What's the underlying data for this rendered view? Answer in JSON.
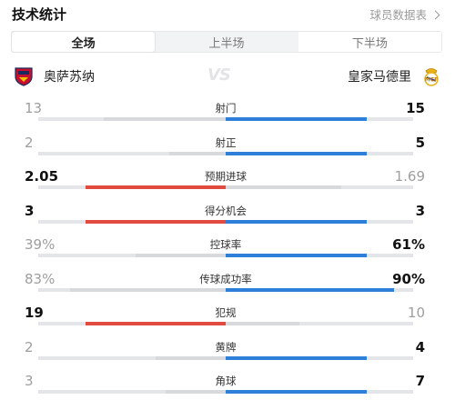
{
  "header": {
    "title": "技术统计",
    "data_link": "球员数据表"
  },
  "tabs": [
    {
      "label": "全场",
      "active": true
    },
    {
      "label": "上半场",
      "active": false
    },
    {
      "label": "下半场",
      "active": false
    }
  ],
  "teams": {
    "home": {
      "name": "奥萨苏纳",
      "icon": "osasuna-badge-icon"
    },
    "away": {
      "name": "皇家马德里",
      "icon": "real-madrid-badge-icon"
    },
    "vs": "VS"
  },
  "colors": {
    "home": "#e04a3f",
    "away": "#2e7fd9",
    "neutral": "#d8d9dc"
  },
  "stats": [
    {
      "label": "射门",
      "home": "13",
      "away": "15",
      "home_frac": 0.464,
      "away_frac": 0.536,
      "winner": "away"
    },
    {
      "label": "射正",
      "home": "2",
      "away": "5",
      "home_frac": 0.286,
      "away_frac": 0.714,
      "winner": "away"
    },
    {
      "label": "预期进球",
      "home": "2.05",
      "away": "1.69",
      "home_frac": 0.548,
      "away_frac": 0.452,
      "winner": "home"
    },
    {
      "label": "得分机会",
      "home": "3",
      "away": "3",
      "home_frac": 0.5,
      "away_frac": 0.5,
      "winner": "both"
    },
    {
      "label": "控球率",
      "home": "39%",
      "away": "61%",
      "home_frac": 0.39,
      "away_frac": 0.61,
      "winner": "away"
    },
    {
      "label": "传球成功率",
      "home": "83%",
      "away": "90%",
      "home_frac": 0.83,
      "away_frac": 0.9,
      "winner": "away",
      "absolute": true
    },
    {
      "label": "犯规",
      "home": "19",
      "away": "10",
      "home_frac": 0.655,
      "away_frac": 0.345,
      "winner": "home"
    },
    {
      "label": "黄牌",
      "home": "2",
      "away": "4",
      "home_frac": 0.333,
      "away_frac": 0.667,
      "winner": "away"
    },
    {
      "label": "角球",
      "home": "3",
      "away": "7",
      "home_frac": 0.3,
      "away_frac": 0.7,
      "winner": "away"
    }
  ]
}
